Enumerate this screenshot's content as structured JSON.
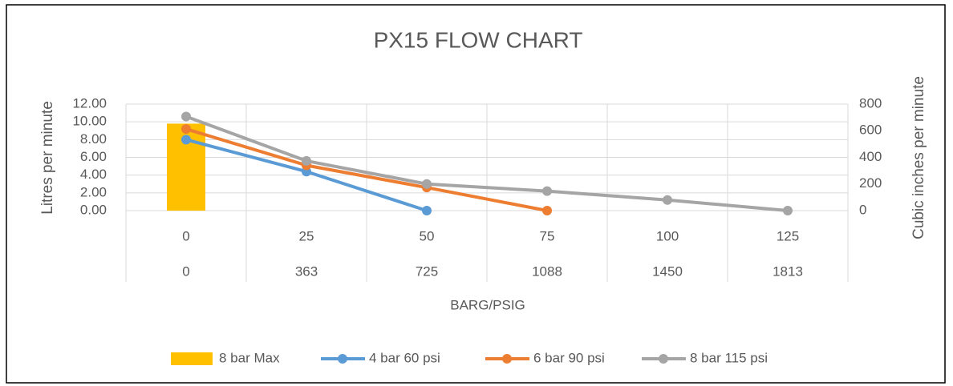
{
  "chart_data": {
    "type": "bar-line",
    "title": "PX15 FLOW CHART",
    "x_label": "BARG/PSIG",
    "y_label": "Litres per minute",
    "y2_label": "Cubic inches per minute",
    "categories": [
      "0",
      "25",
      "50",
      "75",
      "100",
      "125"
    ],
    "categories2": [
      "0",
      "363",
      "725",
      "1088",
      "1450",
      "1813"
    ],
    "ylim": [
      0,
      12
    ],
    "yticks": [
      {
        "value": 0,
        "label": "0.00"
      },
      {
        "value": 2,
        "label": "2.00"
      },
      {
        "value": 4,
        "label": "4.00"
      },
      {
        "value": 6,
        "label": "6.00"
      },
      {
        "value": 8,
        "label": "8.00"
      },
      {
        "value": 10,
        "label": "10.00"
      },
      {
        "value": 12,
        "label": "12.00"
      }
    ],
    "y2lim": [
      0,
      800
    ],
    "y2ticks": [
      0,
      200,
      400,
      600,
      800
    ],
    "grid": true,
    "legend": "bottom",
    "series": [
      {
        "name": "8 bar Max",
        "kind": "bar",
        "color": "#ffc000",
        "values": [
          9.8,
          null,
          null,
          null,
          null,
          null
        ]
      },
      {
        "name": "4 bar 60 psi",
        "kind": "line",
        "color": "#5b9bd5",
        "values": [
          8.0,
          4.4,
          0,
          null,
          null,
          null
        ]
      },
      {
        "name": "6 bar 90 psi",
        "kind": "line",
        "color": "#ed7d31",
        "values": [
          9.2,
          5.1,
          2.6,
          0,
          null,
          null
        ]
      },
      {
        "name": "8 bar 115 psi",
        "kind": "line",
        "color": "#a5a5a5",
        "values": [
          10.6,
          5.6,
          3.0,
          2.2,
          1.2,
          0
        ]
      }
    ]
  }
}
